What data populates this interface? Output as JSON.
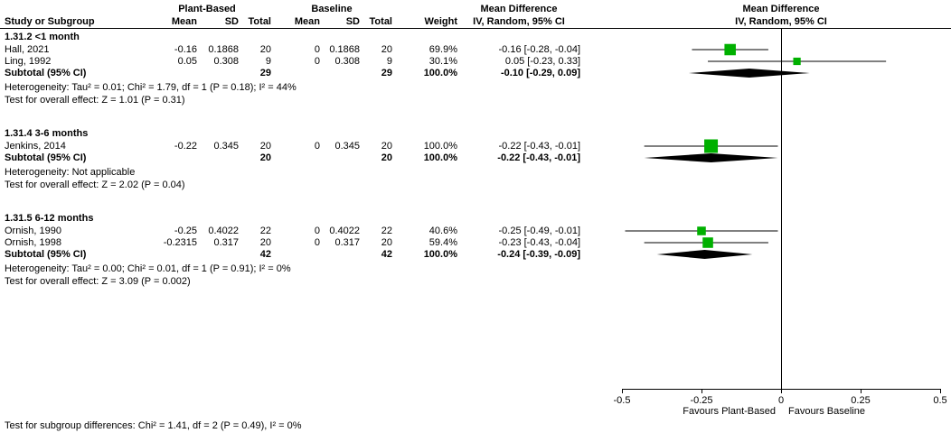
{
  "header": {
    "study_col": "Study or Subgroup",
    "group1": "Plant-Based",
    "group2": "Baseline",
    "mean": "Mean",
    "sd": "SD",
    "total": "Total",
    "weight": "Weight",
    "md_title": "Mean Difference",
    "md_subtitle": "IV, Random, 95% CI",
    "plot_title": "Mean Difference",
    "plot_subtitle": "IV, Random, 95% CI"
  },
  "chart_data": {
    "type": "forest",
    "effect_measure": "Mean Difference",
    "model": "IV, Random, 95% CI",
    "xlim": [
      -0.5,
      0.5
    ],
    "x_ticks": [
      "-0.5",
      "-0.25",
      "0",
      "0.25",
      "0.5"
    ],
    "favours_left": "Favours Plant-Based",
    "favours_right": "Favours Baseline",
    "subgroups": [
      {
        "title": "1.31.2 <1 month",
        "studies": [
          {
            "name": "Hall, 2021",
            "mean1": "-0.16",
            "sd1": "0.1868",
            "total1": "20",
            "mean2": "0",
            "sd2": "0.1868",
            "total2": "20",
            "weight": "69.9%",
            "ci_text": "-0.16 [-0.28, -0.04]",
            "md": -0.16,
            "lo": -0.28,
            "hi": -0.04,
            "weight_pct": 69.9
          },
          {
            "name": "Ling, 1992",
            "mean1": "0.05",
            "sd1": "0.308",
            "total1": "9",
            "mean2": "0",
            "sd2": "0.308",
            "total2": "9",
            "weight": "30.1%",
            "ci_text": "0.05 [-0.23, 0.33]",
            "md": 0.05,
            "lo": -0.23,
            "hi": 0.33,
            "weight_pct": 30.1
          }
        ],
        "subtotal": {
          "label": "Subtotal (95% CI)",
          "total1": "29",
          "total2": "29",
          "weight": "100.0%",
          "ci_text": "-0.10 [-0.29, 0.09]",
          "md": -0.1,
          "lo": -0.29,
          "hi": 0.09
        },
        "heterogeneity": "Heterogeneity: Tau² = 0.01; Chi² = 1.79, df = 1 (P = 0.18); I² = 44%",
        "overall_effect": "Test for overall effect: Z = 1.01 (P = 0.31)"
      },
      {
        "title": "1.31.4 3-6 months",
        "studies": [
          {
            "name": "Jenkins, 2014",
            "mean1": "-0.22",
            "sd1": "0.345",
            "total1": "20",
            "mean2": "0",
            "sd2": "0.345",
            "total2": "20",
            "weight": "100.0%",
            "ci_text": "-0.22 [-0.43, -0.01]",
            "md": -0.22,
            "lo": -0.43,
            "hi": -0.01,
            "weight_pct": 100.0
          }
        ],
        "subtotal": {
          "label": "Subtotal (95% CI)",
          "total1": "20",
          "total2": "20",
          "weight": "100.0%",
          "ci_text": "-0.22 [-0.43, -0.01]",
          "md": -0.22,
          "lo": -0.43,
          "hi": -0.01
        },
        "heterogeneity": "Heterogeneity: Not applicable",
        "overall_effect": "Test for overall effect: Z = 2.02 (P = 0.04)"
      },
      {
        "title": "1.31.5 6-12 months",
        "studies": [
          {
            "name": "Ornish, 1990",
            "mean1": "-0.25",
            "sd1": "0.4022",
            "total1": "22",
            "mean2": "0",
            "sd2": "0.4022",
            "total2": "22",
            "weight": "40.6%",
            "ci_text": "-0.25 [-0.49, -0.01]",
            "md": -0.25,
            "lo": -0.49,
            "hi": -0.01,
            "weight_pct": 40.6
          },
          {
            "name": "Ornish, 1998",
            "mean1": "-0.2315",
            "sd1": "0.317",
            "total1": "20",
            "mean2": "0",
            "sd2": "0.317",
            "total2": "20",
            "weight": "59.4%",
            "ci_text": "-0.23 [-0.43, -0.04]",
            "md": -0.23,
            "lo": -0.43,
            "hi": -0.04,
            "weight_pct": 59.4
          }
        ],
        "subtotal": {
          "label": "Subtotal (95% CI)",
          "total1": "42",
          "total2": "42",
          "weight": "100.0%",
          "ci_text": "-0.24 [-0.39, -0.09]",
          "md": -0.24,
          "lo": -0.39,
          "hi": -0.09
        },
        "heterogeneity": "Heterogeneity: Tau² = 0.00; Chi² = 0.01, df = 1 (P = 0.91); I² = 0%",
        "overall_effect": "Test for overall effect: Z = 3.09 (P = 0.002)"
      }
    ]
  },
  "footer": "Test for subgroup differences: Chi² = 1.41, df = 2 (P = 0.49), I² = 0%",
  "colors": {
    "square": "#00b000",
    "diamond": "#000000",
    "line": "#000000",
    "text": "#000000",
    "background": "#ffffff"
  }
}
